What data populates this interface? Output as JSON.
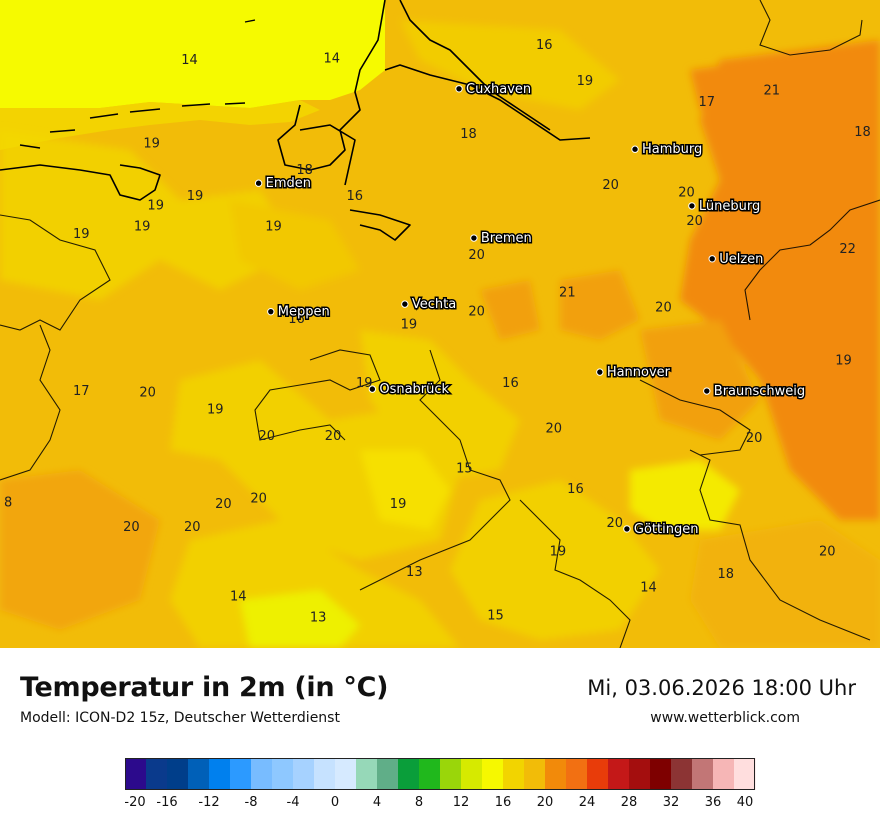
{
  "header": {
    "title": "Temperatur in 2m (in °C)",
    "subtitle": "Modell: ICON-D2 15z, Deutscher Wetterdienst",
    "datetime": "Mi, 03.06.2026 18:00 Uhr",
    "website": "www.wetterblick.com"
  },
  "map": {
    "region": "Nordwestdeutschland",
    "cities": [
      {
        "name": "Cuxhaven",
        "lon": 8.69,
        "lat": 53.87
      },
      {
        "name": "Hamburg",
        "lon": 9.99,
        "lat": 53.55
      },
      {
        "name": "Emden",
        "lon": 7.21,
        "lat": 53.37
      },
      {
        "name": "Lüneburg",
        "lon": 10.41,
        "lat": 53.25
      },
      {
        "name": "Bremen",
        "lon": 8.8,
        "lat": 53.08
      },
      {
        "name": "Uelzen",
        "lon": 10.56,
        "lat": 52.97
      },
      {
        "name": "Vechta",
        "lon": 8.29,
        "lat": 52.73
      },
      {
        "name": "Meppen",
        "lon": 7.3,
        "lat": 52.69
      },
      {
        "name": "Osnabrück",
        "lon": 8.05,
        "lat": 52.28
      },
      {
        "name": "Hannover",
        "lon": 9.73,
        "lat": 52.37
      },
      {
        "name": "Braunschweig",
        "lon": 10.52,
        "lat": 52.27
      },
      {
        "name": "Göttingen",
        "lon": 9.93,
        "lat": 51.54
      }
    ],
    "values": [
      {
        "v": "14",
        "lon": 6.7,
        "lat": 54.0
      },
      {
        "v": "14",
        "lon": 7.75,
        "lat": 54.01
      },
      {
        "v": "16",
        "lon": 9.32,
        "lat": 54.08
      },
      {
        "v": "19",
        "lon": 9.62,
        "lat": 53.89
      },
      {
        "v": "17",
        "lon": 10.52,
        "lat": 53.78
      },
      {
        "v": "21",
        "lon": 11.0,
        "lat": 53.84
      },
      {
        "v": "21",
        "lon": 11.94,
        "lat": 53.91
      },
      {
        "v": "18",
        "lon": 8.76,
        "lat": 53.61
      },
      {
        "v": "18",
        "lon": 11.67,
        "lat": 53.62
      },
      {
        "v": "19",
        "lon": 6.42,
        "lat": 53.56
      },
      {
        "v": "18",
        "lon": 7.55,
        "lat": 53.42
      },
      {
        "v": "19",
        "lon": 6.74,
        "lat": 53.28
      },
      {
        "v": "16",
        "lon": 7.92,
        "lat": 53.28
      },
      {
        "v": "20",
        "lon": 9.81,
        "lat": 53.34
      },
      {
        "v": "20",
        "lon": 10.37,
        "lat": 53.3
      },
      {
        "v": "19",
        "lon": 6.45,
        "lat": 53.23
      },
      {
        "v": "20",
        "lon": 10.43,
        "lat": 53.15
      },
      {
        "v": "19",
        "lon": 5.9,
        "lat": 53.08
      },
      {
        "v": "19",
        "lon": 6.35,
        "lat": 53.12
      },
      {
        "v": "19",
        "lon": 7.32,
        "lat": 53.12
      },
      {
        "v": "20",
        "lon": 8.82,
        "lat": 52.97
      },
      {
        "v": "22",
        "lon": 11.56,
        "lat": 53.0
      },
      {
        "v": "21",
        "lon": 9.49,
        "lat": 52.77
      },
      {
        "v": "20",
        "lon": 8.82,
        "lat": 52.67
      },
      {
        "v": "20",
        "lon": 10.2,
        "lat": 52.69
      },
      {
        "v": "16",
        "lon": 7.49,
        "lat": 52.63
      },
      {
        "v": "19",
        "lon": 8.32,
        "lat": 52.6
      },
      {
        "v": "19",
        "lon": 11.53,
        "lat": 52.41
      },
      {
        "v": "17",
        "lon": 5.9,
        "lat": 52.25
      },
      {
        "v": "20",
        "lon": 6.39,
        "lat": 52.24
      },
      {
        "v": "19",
        "lon": 7.99,
        "lat": 52.29
      },
      {
        "v": "16",
        "lon": 9.07,
        "lat": 52.29
      },
      {
        "v": "19",
        "lon": 6.89,
        "lat": 52.15
      },
      {
        "v": "20",
        "lon": 9.39,
        "lat": 52.05
      },
      {
        "v": "20",
        "lon": 10.87,
        "lat": 52.0
      },
      {
        "v": "20",
        "lon": 7.27,
        "lat": 52.01
      },
      {
        "v": "20",
        "lon": 7.76,
        "lat": 52.01
      },
      {
        "v": "15",
        "lon": 8.73,
        "lat": 51.84
      },
      {
        "v": "16",
        "lon": 9.55,
        "lat": 51.73
      },
      {
        "v": "8",
        "lon": 5.36,
        "lat": 51.66
      },
      {
        "v": "20",
        "lon": 7.21,
        "lat": 51.68
      },
      {
        "v": "19",
        "lon": 8.24,
        "lat": 51.65
      },
      {
        "v": "20",
        "lon": 6.95,
        "lat": 51.65
      },
      {
        "v": "20",
        "lon": 6.27,
        "lat": 51.53
      },
      {
        "v": "20",
        "lon": 6.72,
        "lat": 51.53
      },
      {
        "v": "20",
        "lon": 9.84,
        "lat": 51.55
      },
      {
        "v": "19",
        "lon": 9.42,
        "lat": 51.4
      },
      {
        "v": "20",
        "lon": 11.41,
        "lat": 51.4
      },
      {
        "v": "13",
        "lon": 8.36,
        "lat": 51.29
      },
      {
        "v": "18",
        "lon": 10.66,
        "lat": 51.28
      },
      {
        "v": "14",
        "lon": 7.06,
        "lat": 51.16
      },
      {
        "v": "14",
        "lon": 10.09,
        "lat": 51.21
      },
      {
        "v": "13",
        "lon": 7.65,
        "lat": 51.05
      },
      {
        "v": "15",
        "lon": 8.96,
        "lat": 51.06
      }
    ]
  },
  "legend": {
    "unit": "°C",
    "ticks": [
      "-20",
      "-16",
      "-12",
      "-8",
      "-4",
      "0",
      "4",
      "8",
      "12",
      "16",
      "20",
      "24",
      "28",
      "32",
      "36",
      "40"
    ],
    "colors": [
      "#2c0a8c",
      "#0a3a8c",
      "#003e8a",
      "#0060b8",
      "#0080ee",
      "#2c9aff",
      "#78bcff",
      "#8ec8ff",
      "#a6d2ff",
      "#c6e2ff",
      "#d6eaff",
      "#96d8b8",
      "#60ae88",
      "#0a9e3a",
      "#20b81c",
      "#9ad60a",
      "#d6ea00",
      "#f6f800",
      "#f2d400",
      "#f2bc08",
      "#f28a0a",
      "#f27012",
      "#e83c0a",
      "#c41818",
      "#a40e0e",
      "#7e0000",
      "#8c3434",
      "#c27676",
      "#f6b6b6",
      "#ffdede"
    ]
  }
}
